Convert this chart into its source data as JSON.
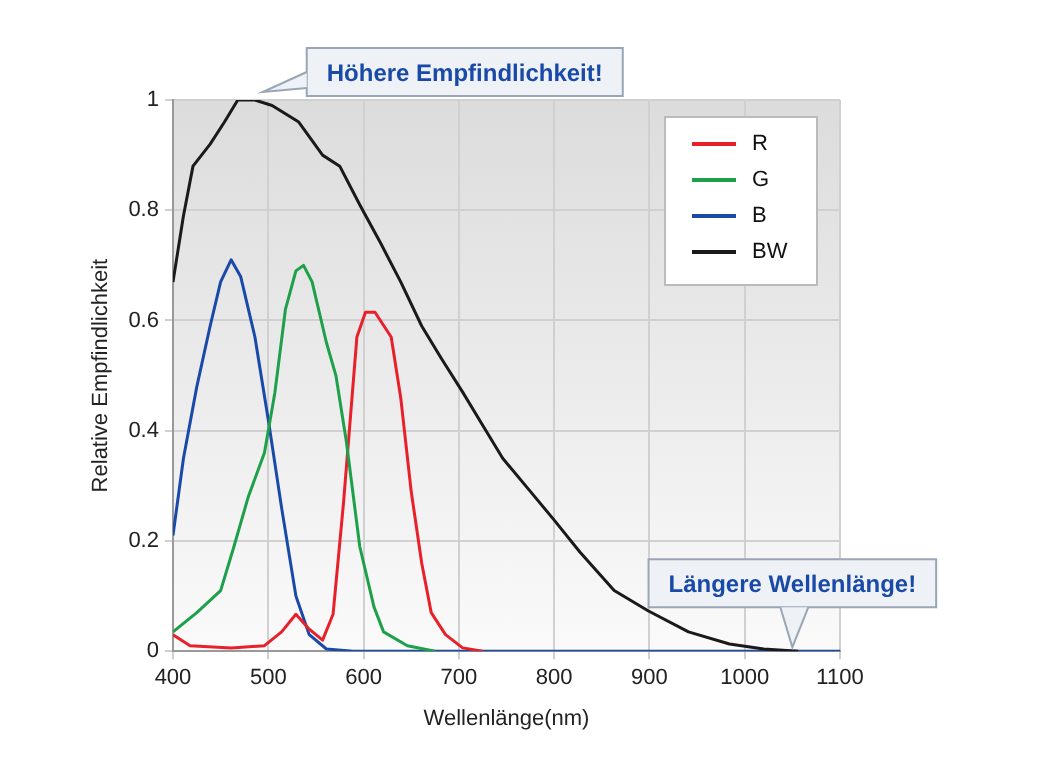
{
  "chart_data": {
    "type": "line",
    "xlabel": "Wellenlänge(nm)",
    "ylabel": "Relative Empfindlichkeit",
    "xlim": [
      400,
      1100
    ],
    "xticks": [
      400,
      500,
      600,
      700,
      800,
      900,
      1000,
      1100
    ],
    "ylim": [
      0,
      1
    ],
    "yticks": [
      0,
      0.2,
      0.4,
      0.6,
      0.8,
      1
    ],
    "grid": true,
    "legend": "top right",
    "marker": "none",
    "line_style": "solid",
    "annotations": [
      {
        "text": "Höhere Empfindlichkeit!",
        "x": 490,
        "y": 1.0
      },
      {
        "text": "Längere Wellenlänge!",
        "x": 1050,
        "y": 0
      }
    ],
    "series": [
      {
        "name": "R",
        "color": "#e8202a",
        "x": [
          400,
          418,
          461,
          496,
          514,
          529,
          543,
          557,
          568,
          579,
          593,
          602,
          612,
          629,
          639,
          650,
          661,
          671,
          686,
          704,
          725
        ],
        "values": [
          0.03,
          0.01,
          0.006,
          0.01,
          0.035,
          0.067,
          0.04,
          0.02,
          0.067,
          0.27,
          0.57,
          0.615,
          0.615,
          0.57,
          0.46,
          0.29,
          0.16,
          0.07,
          0.03,
          0.006,
          0
        ]
      },
      {
        "name": "G",
        "color": "#1ea04a",
        "x": [
          400,
          425,
          450,
          464,
          479,
          496,
          507,
          518,
          529,
          537,
          546,
          561,
          571,
          582,
          596,
          611,
          621,
          646,
          675
        ],
        "values": [
          0.035,
          0.07,
          0.11,
          0.19,
          0.28,
          0.36,
          0.47,
          0.62,
          0.69,
          0.7,
          0.67,
          0.56,
          0.5,
          0.38,
          0.19,
          0.08,
          0.035,
          0.01,
          0
        ]
      },
      {
        "name": "B",
        "color": "#1a4aa8",
        "x": [
          400,
          411,
          425,
          439,
          450,
          461,
          471,
          486,
          500,
          514,
          529,
          543,
          561,
          589,
          1100
        ],
        "values": [
          0.21,
          0.35,
          0.48,
          0.59,
          0.67,
          0.71,
          0.68,
          0.57,
          0.42,
          0.26,
          0.1,
          0.03,
          0.004,
          0,
          0
        ]
      },
      {
        "name": "BW",
        "color": "#1a1a1a",
        "x": [
          400,
          411,
          421,
          439,
          454,
          468,
          486,
          504,
          532,
          557,
          575,
          596,
          618,
          639,
          661,
          682,
          704,
          725,
          746,
          775,
          799,
          827,
          863,
          899,
          941,
          984,
          1020,
          1056
        ],
        "values": [
          0.67,
          0.79,
          0.88,
          0.92,
          0.96,
          1.0,
          1.0,
          0.99,
          0.96,
          0.9,
          0.88,
          0.81,
          0.74,
          0.67,
          0.59,
          0.53,
          0.47,
          0.41,
          0.35,
          0.29,
          0.24,
          0.18,
          0.11,
          0.073,
          0.035,
          0.013,
          0.004,
          0
        ]
      }
    ]
  }
}
